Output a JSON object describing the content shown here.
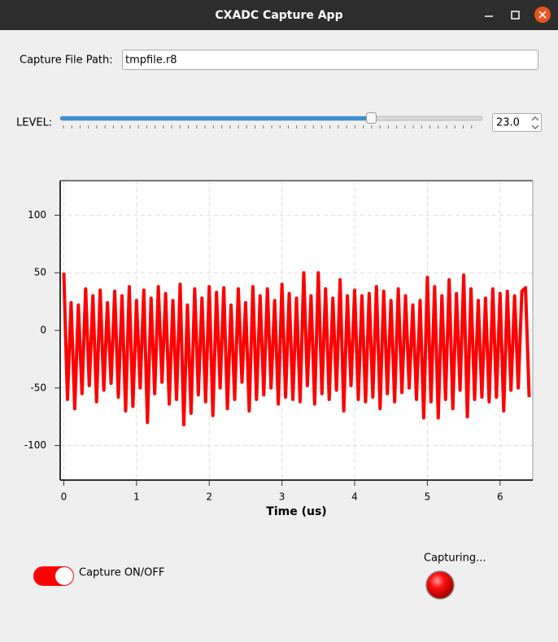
{
  "window": {
    "title": "CXADC Capture App"
  },
  "file_path": {
    "label": "Capture File Path:",
    "value": "tmpfile.r8"
  },
  "level": {
    "label": "LEVEL:",
    "value": "23.0"
  },
  "chart_data": {
    "type": "line",
    "xlabel": "Time (us)",
    "x": [
      0,
      0.05,
      0.1,
      0.15,
      0.2,
      0.25,
      0.3,
      0.35,
      0.4,
      0.45,
      0.5,
      0.55,
      0.6,
      0.65,
      0.7,
      0.75,
      0.8,
      0.85,
      0.9,
      0.95,
      1,
      1.05,
      1.1,
      1.15,
      1.2,
      1.25,
      1.3,
      1.35,
      1.4,
      1.45,
      1.5,
      1.55,
      1.6,
      1.65,
      1.7,
      1.75,
      1.8,
      1.85,
      1.9,
      1.95,
      2,
      2.05,
      2.1,
      2.15,
      2.2,
      2.25,
      2.3,
      2.35,
      2.4,
      2.45,
      2.5,
      2.55,
      2.6,
      2.65,
      2.7,
      2.75,
      2.8,
      2.85,
      2.9,
      2.95,
      3,
      3.05,
      3.1,
      3.15,
      3.2,
      3.25,
      3.3,
      3.35,
      3.4,
      3.45,
      3.5,
      3.55,
      3.6,
      3.65,
      3.7,
      3.75,
      3.8,
      3.85,
      3.9,
      3.95,
      4,
      4.05,
      4.1,
      4.15,
      4.2,
      4.25,
      4.3,
      4.35,
      4.4,
      4.45,
      4.5,
      4.55,
      4.6,
      4.65,
      4.7,
      4.75,
      4.8,
      4.85,
      4.9,
      4.95,
      5,
      5.05,
      5.1,
      5.15,
      5.2,
      5.25,
      5.3,
      5.35,
      5.4,
      5.45,
      5.5,
      5.55,
      5.6,
      5.65,
      5.7,
      5.75,
      5.8,
      5.85,
      5.9,
      5.95,
      6,
      6.05,
      6.1,
      6.15,
      6.2,
      6.25,
      6.3,
      6.35,
      6.4
    ],
    "series": [
      {
        "color": "#ff0000",
        "values": [
          50,
          -60,
          24,
          -68,
          22,
          -55,
          36,
          -48,
          30,
          -62,
          35,
          -52,
          24,
          -46,
          34,
          -58,
          30,
          -70,
          38,
          -66,
          26,
          -50,
          35,
          -80,
          28,
          -55,
          38,
          -45,
          32,
          -64,
          26,
          -60,
          40,
          -82,
          22,
          -72,
          36,
          -56,
          28,
          -62,
          38,
          -74,
          33,
          -50,
          37,
          -68,
          22,
          -60,
          36,
          -45,
          24,
          -70,
          38,
          -60,
          30,
          -56,
          36,
          -50,
          26,
          -64,
          40,
          -58,
          32,
          -60,
          28,
          -62,
          50,
          -48,
          30,
          -64,
          50,
          -55,
          36,
          -60,
          28,
          -52,
          44,
          -70,
          30,
          -48,
          35,
          -60,
          30,
          -62,
          32,
          -58,
          38,
          -68,
          34,
          -55,
          26,
          -62,
          36,
          -54,
          30,
          -50,
          22,
          -60,
          26,
          -76,
          46,
          -62,
          38,
          -76,
          30,
          -60,
          44,
          -68,
          32,
          -52,
          48,
          -75,
          36,
          -60,
          26,
          -58,
          28,
          -62,
          36,
          -58,
          32,
          -70,
          34,
          -52,
          30,
          -50,
          34,
          37,
          -58
        ]
      }
    ],
    "xlim": [
      -0.05,
      6.45
    ],
    "ylim": [
      -130,
      130
    ],
    "xticks": [
      0,
      1,
      2,
      3,
      4,
      5,
      6
    ],
    "yticks": [
      -100,
      -50,
      0,
      50,
      100
    ],
    "grid": true
  },
  "toggle": {
    "label": "Capture ON/OFF"
  },
  "status": {
    "label": "Capturing..."
  }
}
